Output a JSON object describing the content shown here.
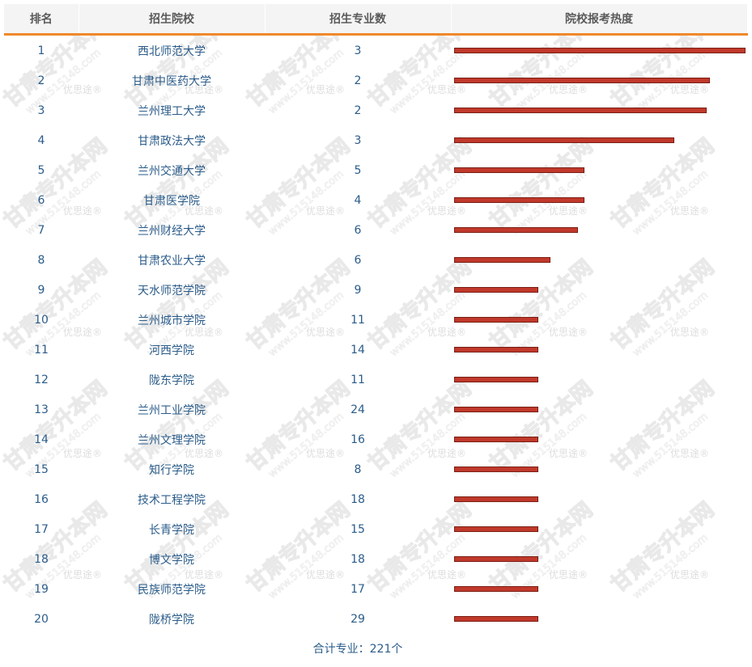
{
  "table": {
    "headers": [
      "排名",
      "招生院校",
      "招生专业数",
      "院校报考热度"
    ],
    "rows": [
      {
        "rank": "1",
        "school": "西北师范大学",
        "count": "3",
        "heat": 1.0
      },
      {
        "rank": "2",
        "school": "甘肃中医药大学",
        "count": "2",
        "heat": 0.877
      },
      {
        "rank": "3",
        "school": "兰州理工大学",
        "count": "2",
        "heat": 0.866
      },
      {
        "rank": "4",
        "school": "甘肃政法大学",
        "count": "3",
        "heat": 0.755
      },
      {
        "rank": "5",
        "school": "兰州交通大学",
        "count": "5",
        "heat": 0.443
      },
      {
        "rank": "6",
        "school": "甘肃医学院",
        "count": "4",
        "heat": 0.443
      },
      {
        "rank": "7",
        "school": "兰州财经大学",
        "count": "6",
        "heat": 0.423
      },
      {
        "rank": "8",
        "school": "甘肃农业大学",
        "count": "6",
        "heat": 0.326
      },
      {
        "rank": "9",
        "school": "天水师范学院",
        "count": "9",
        "heat": 0.284
      },
      {
        "rank": "10",
        "school": "兰州城市学院",
        "count": "11",
        "heat": 0.284
      },
      {
        "rank": "11",
        "school": "河西学院",
        "count": "14",
        "heat": 0.284
      },
      {
        "rank": "12",
        "school": "陇东学院",
        "count": "11",
        "heat": 0.284
      },
      {
        "rank": "13",
        "school": "兰州工业学院",
        "count": "24",
        "heat": 0.284
      },
      {
        "rank": "14",
        "school": "兰州文理学院",
        "count": "16",
        "heat": 0.284
      },
      {
        "rank": "15",
        "school": "知行学院",
        "count": "8",
        "heat": 0.284
      },
      {
        "rank": "16",
        "school": "技术工程学院",
        "count": "18",
        "heat": 0.284
      },
      {
        "rank": "17",
        "school": "长青学院",
        "count": "15",
        "heat": 0.284
      },
      {
        "rank": "18",
        "school": "博文学院",
        "count": "18",
        "heat": 0.284
      },
      {
        "rank": "19",
        "school": "民族师范学院",
        "count": "17",
        "heat": 0.284
      },
      {
        "rank": "20",
        "school": "陇桥学院",
        "count": "29",
        "heat": 0.284
      }
    ]
  },
  "footer": {
    "total_text": "合计专业：221个"
  },
  "watermark": {
    "main_text": "甘肃专升本网",
    "url_text": "www.515148.com",
    "small_text": "优思途®"
  },
  "colors": {
    "bar_fill": "#c0392b",
    "header_underline": "#f0882a",
    "text": "#2b5c8a"
  }
}
